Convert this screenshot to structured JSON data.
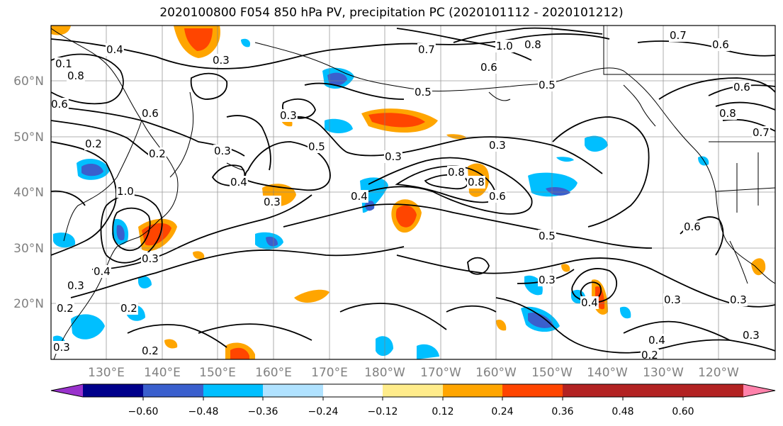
{
  "title": "2020100800 F054 850 hPa PV, precipitation PC (2020101112 - 2020101212)",
  "lat_labels": [
    "60°N",
    "50°N",
    "40°N",
    "30°N",
    "20°N"
  ],
  "lon_labels": [
    "130°E",
    "140°E",
    "150°E",
    "160°E",
    "170°E",
    "180°W",
    "170°W",
    "160°W",
    "150°W",
    "140°W",
    "130°W",
    "120°W"
  ],
  "contour_labels": [
    "0.4",
    "0.1",
    "0.8",
    "0.6",
    "0.2",
    "0.2",
    "0.3",
    "0.4",
    "0.5",
    "0.3",
    "0.5",
    "0.3",
    "0.4",
    "0.8",
    "0.6",
    "0.5",
    "0.3",
    "0.3",
    "0.6",
    "0.4",
    "0.3",
    "0.2",
    "0.2",
    "0.3",
    "0.7",
    "0.6",
    "0.6",
    "0.8",
    "0.7",
    "0.6",
    "1.0",
    "0.8",
    "0.5",
    "0.3",
    "0.3",
    "0.2",
    "0.4",
    "0.3",
    "0.3",
    "0.4",
    "0.3",
    "0.3",
    "0.2",
    "0.6",
    "1.0",
    "0.8",
    "0.7"
  ],
  "colorbar": {
    "ticks": [
      "−0.60",
      "−0.48",
      "−0.36",
      "−0.24",
      "−0.12",
      "0.12",
      "0.24",
      "0.36",
      "0.48",
      "0.60"
    ],
    "colors": [
      "#9932CC",
      "#00008B",
      "#3A5FCD",
      "#00BFFF",
      "#B0E2FF",
      "#FFFFFF",
      "#FFEC8B",
      "#FFA500",
      "#FF4500",
      "#B22222",
      "#FF82AB"
    ]
  }
}
